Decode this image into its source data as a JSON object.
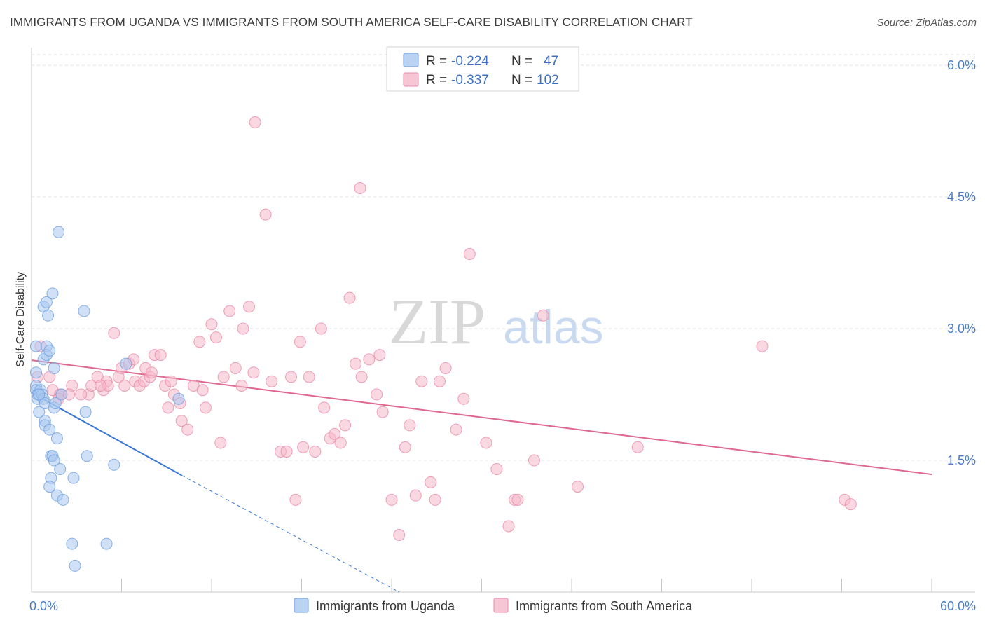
{
  "header": {
    "title": "IMMIGRANTS FROM UGANDA VS IMMIGRANTS FROM SOUTH AMERICA SELF-CARE DISABILITY CORRELATION CHART",
    "source": "Source: ZipAtlas.com"
  },
  "watermark": {
    "zip": "ZIP",
    "atlas": "atlas"
  },
  "colors": {
    "uganda_fill": "#a9c8f0",
    "uganda_stroke": "#6f9fdc",
    "uganda_line": "#3a78d4",
    "sa_fill": "#f5b8cb",
    "sa_stroke": "#e98aa8",
    "sa_line": "#e0688f",
    "grid": "#e2e2e2",
    "axis_label": "#4a7cc4"
  },
  "legend": {
    "rows": [
      {
        "r_label": "R =",
        "r_value": "-0.224",
        "n_label": "N =",
        "n_value": "47"
      },
      {
        "r_label": "R =",
        "r_value": "-0.337",
        "n_label": "N =",
        "n_value": "102"
      }
    ]
  },
  "chart_data": {
    "type": "scatter",
    "title": "IMMIGRANTS FROM UGANDA VS IMMIGRANTS FROM SOUTH AMERICA SELF-CARE DISABILITY CORRELATION CHART",
    "xlabel": "",
    "ylabel": "Self-Care Disability",
    "xlim": [
      0,
      60
    ],
    "ylim": [
      0,
      6.2
    ],
    "x_tick_labels": [
      "0.0%",
      "60.0%"
    ],
    "y_ticks": [
      1.5,
      3.0,
      4.5,
      6.0
    ],
    "y_tick_labels": [
      "1.5%",
      "3.0%",
      "4.5%",
      "6.0%"
    ],
    "grid": true,
    "legend_position": "top-center",
    "series": [
      {
        "name": "Immigrants from Uganda",
        "points": [
          [
            0.3,
            2.8
          ],
          [
            0.3,
            2.5
          ],
          [
            0.3,
            2.35
          ],
          [
            0.3,
            2.3
          ],
          [
            0.4,
            2.25
          ],
          [
            0.4,
            2.2
          ],
          [
            0.5,
            2.05
          ],
          [
            0.6,
            2.3
          ],
          [
            0.7,
            2.25
          ],
          [
            0.8,
            2.65
          ],
          [
            0.8,
            2.2
          ],
          [
            0.9,
            1.95
          ],
          [
            0.9,
            1.9
          ],
          [
            0.9,
            2.15
          ],
          [
            0.8,
            3.25
          ],
          [
            1.0,
            3.3
          ],
          [
            1.0,
            2.8
          ],
          [
            1.0,
            2.7
          ],
          [
            1.1,
            3.15
          ],
          [
            1.2,
            2.75
          ],
          [
            1.2,
            1.85
          ],
          [
            1.3,
            1.55
          ],
          [
            1.3,
            1.3
          ],
          [
            1.2,
            1.2
          ],
          [
            1.4,
            3.4
          ],
          [
            1.5,
            2.55
          ],
          [
            1.4,
            1.55
          ],
          [
            1.5,
            1.5
          ],
          [
            1.5,
            2.1
          ],
          [
            1.6,
            2.15
          ],
          [
            1.7,
            1.1
          ],
          [
            1.7,
            1.75
          ],
          [
            1.8,
            4.1
          ],
          [
            1.9,
            1.4
          ],
          [
            2.0,
            2.25
          ],
          [
            2.1,
            1.05
          ],
          [
            2.7,
            0.55
          ],
          [
            2.8,
            1.3
          ],
          [
            2.9,
            0.3
          ],
          [
            3.5,
            3.2
          ],
          [
            3.6,
            2.05
          ],
          [
            3.7,
            1.55
          ],
          [
            5.0,
            0.55
          ],
          [
            5.5,
            1.45
          ],
          [
            6.3,
            2.6
          ],
          [
            9.8,
            2.2
          ],
          [
            0.5,
            2.25
          ]
        ],
        "trend": {
          "x1": 0,
          "y1": 2.27,
          "x2": 10.0,
          "y2": 1.33,
          "dashed_to_x": 24.5,
          "dashed_to_y": 0.0
        }
      },
      {
        "name": "Immigrants from South America",
        "points": [
          [
            0.4,
            2.45
          ],
          [
            0.6,
            2.8
          ],
          [
            1.2,
            2.45
          ],
          [
            1.4,
            2.3
          ],
          [
            1.9,
            2.25
          ],
          [
            2.0,
            2.25
          ],
          [
            2.7,
            2.35
          ],
          [
            3.8,
            2.25
          ],
          [
            4.0,
            2.35
          ],
          [
            4.4,
            2.45
          ],
          [
            4.8,
            2.3
          ],
          [
            5.0,
            2.4
          ],
          [
            5.1,
            2.35
          ],
          [
            5.5,
            2.95
          ],
          [
            5.8,
            2.45
          ],
          [
            6.0,
            2.55
          ],
          [
            6.2,
            2.35
          ],
          [
            6.5,
            2.6
          ],
          [
            6.8,
            2.65
          ],
          [
            6.9,
            2.4
          ],
          [
            7.2,
            2.35
          ],
          [
            7.5,
            2.4
          ],
          [
            7.6,
            2.55
          ],
          [
            7.9,
            2.45
          ],
          [
            8.0,
            2.5
          ],
          [
            8.2,
            2.7
          ],
          [
            8.6,
            2.7
          ],
          [
            8.9,
            2.35
          ],
          [
            9.1,
            2.1
          ],
          [
            9.3,
            2.4
          ],
          [
            9.5,
            2.25
          ],
          [
            9.9,
            2.15
          ],
          [
            10.0,
            1.95
          ],
          [
            10.4,
            1.85
          ],
          [
            10.8,
            2.35
          ],
          [
            11.2,
            2.85
          ],
          [
            11.4,
            2.3
          ],
          [
            11.6,
            2.1
          ],
          [
            12.0,
            3.05
          ],
          [
            12.3,
            2.9
          ],
          [
            12.6,
            1.7
          ],
          [
            12.8,
            2.45
          ],
          [
            13.2,
            3.2
          ],
          [
            13.6,
            2.55
          ],
          [
            14.0,
            2.35
          ],
          [
            14.1,
            3.0
          ],
          [
            14.5,
            3.25
          ],
          [
            14.8,
            2.5
          ],
          [
            14.9,
            5.35
          ],
          [
            15.6,
            4.3
          ],
          [
            16.0,
            2.4
          ],
          [
            16.6,
            1.6
          ],
          [
            17.0,
            1.6
          ],
          [
            17.3,
            2.45
          ],
          [
            17.6,
            1.05
          ],
          [
            17.9,
            2.85
          ],
          [
            18.1,
            1.65
          ],
          [
            18.5,
            2.45
          ],
          [
            18.9,
            1.6
          ],
          [
            19.3,
            3.0
          ],
          [
            19.5,
            2.1
          ],
          [
            19.9,
            1.75
          ],
          [
            20.2,
            1.8
          ],
          [
            20.6,
            1.7
          ],
          [
            20.9,
            1.9
          ],
          [
            21.2,
            3.35
          ],
          [
            21.6,
            2.6
          ],
          [
            21.9,
            4.6
          ],
          [
            22.0,
            2.45
          ],
          [
            22.5,
            2.65
          ],
          [
            23.0,
            2.25
          ],
          [
            23.2,
            2.7
          ],
          [
            23.4,
            2.05
          ],
          [
            24.0,
            1.05
          ],
          [
            24.5,
            0.65
          ],
          [
            24.9,
            1.65
          ],
          [
            25.2,
            1.9
          ],
          [
            25.6,
            1.1
          ],
          [
            26.0,
            2.4
          ],
          [
            26.6,
            1.25
          ],
          [
            26.9,
            1.05
          ],
          [
            27.2,
            2.4
          ],
          [
            27.6,
            2.55
          ],
          [
            28.3,
            1.85
          ],
          [
            28.8,
            2.2
          ],
          [
            29.2,
            3.85
          ],
          [
            30.3,
            1.7
          ],
          [
            31.0,
            1.4
          ],
          [
            31.8,
            0.75
          ],
          [
            32.2,
            1.05
          ],
          [
            32.4,
            1.05
          ],
          [
            33.5,
            1.5
          ],
          [
            34.1,
            3.15
          ],
          [
            36.4,
            1.2
          ],
          [
            40.4,
            1.65
          ],
          [
            48.7,
            2.8
          ],
          [
            54.2,
            1.05
          ],
          [
            54.6,
            1.0
          ],
          [
            2.5,
            2.25
          ],
          [
            3.3,
            2.25
          ],
          [
            1.8,
            2.2
          ],
          [
            4.6,
            2.35
          ]
        ],
        "trend": {
          "x1": 0,
          "y1": 2.64,
          "x2": 60,
          "y2": 1.34
        }
      }
    ]
  }
}
